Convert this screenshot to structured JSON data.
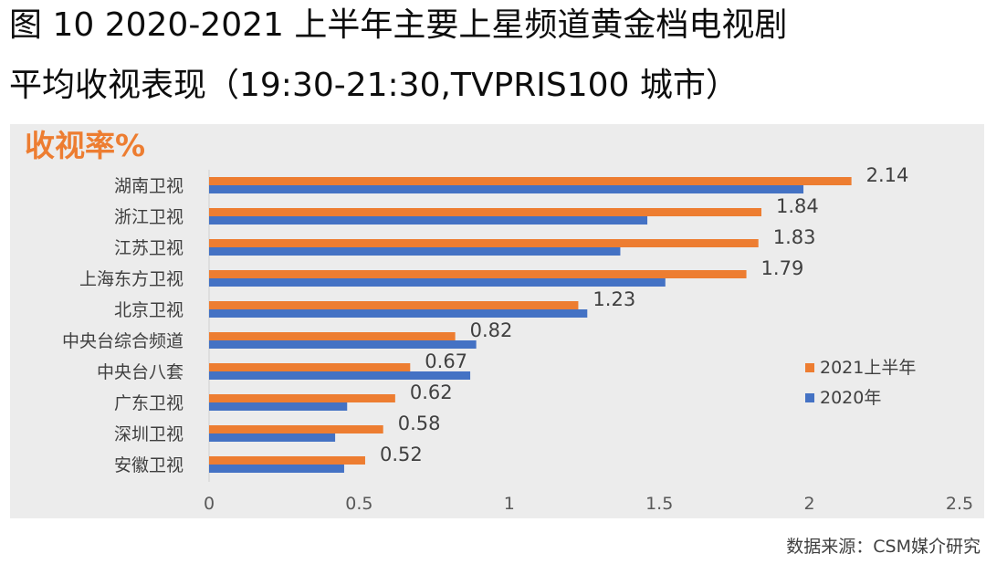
{
  "figure": {
    "title_line1": "图 10 2020-2021 上半年主要上星频道黄金档电视剧",
    "title_line2": "平均收视表现（19:30-21:30,TVPRIS100 城市）",
    "source": "数据来源：CSM媒介研究"
  },
  "chart_data": {
    "type": "bar",
    "orientation": "horizontal",
    "ylabel": "收视率%",
    "categories": [
      "湖南卫视",
      "浙江卫视",
      "江苏卫视",
      "上海东方卫视",
      "北京卫视",
      "中央台综合频道",
      "中央台八套",
      "广东卫视",
      "深圳卫视",
      "安徽卫视"
    ],
    "series": [
      {
        "name": "2021上半年",
        "color": "#ed7d31",
        "values": [
          2.14,
          1.84,
          1.83,
          1.79,
          1.23,
          0.82,
          0.67,
          0.62,
          0.58,
          0.52
        ]
      },
      {
        "name": "2020年",
        "color": "#4472c4",
        "values": [
          1.98,
          1.46,
          1.37,
          1.52,
          1.26,
          0.89,
          0.87,
          0.46,
          0.42,
          0.45
        ]
      }
    ],
    "data_labels_series": "2021上半年",
    "xlim": [
      0,
      2.5
    ],
    "xticks": [
      "0",
      "0.5",
      "1",
      "1.5",
      "2",
      "2.5"
    ],
    "legend_position": "right"
  }
}
